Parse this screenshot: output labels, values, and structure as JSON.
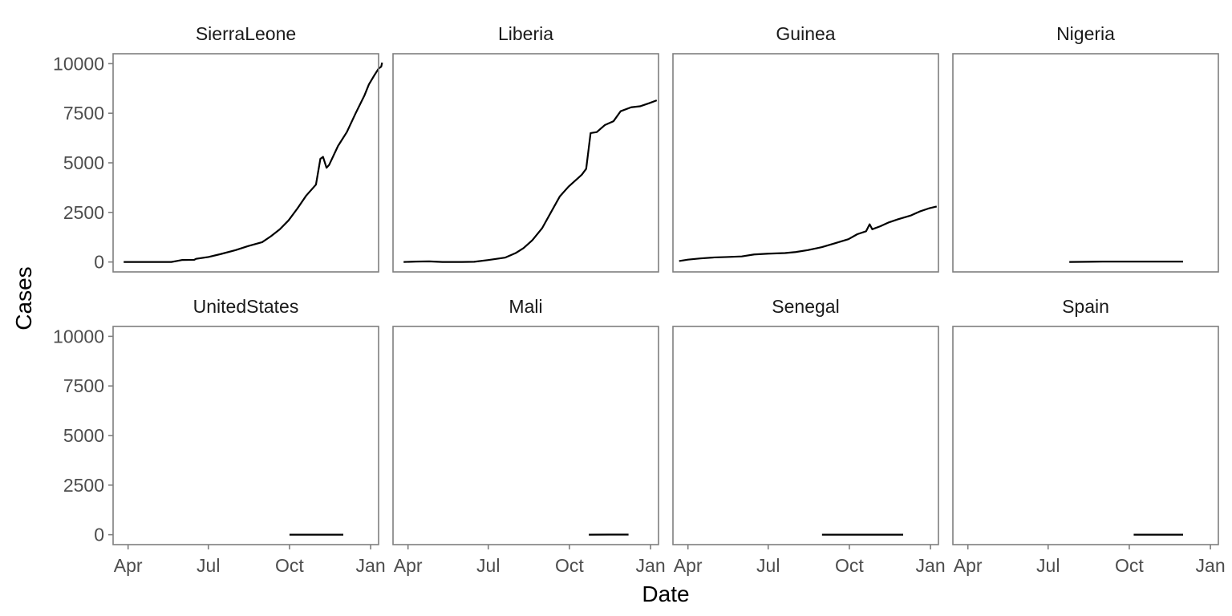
{
  "chart_data": {
    "type": "line",
    "facet": {
      "rows": 2,
      "cols": 4
    },
    "xlabel": "Date",
    "ylabel": "Cases",
    "xlim": [
      "2014-03-15",
      "2015-01-10"
    ],
    "ylim": [
      -500,
      10500
    ],
    "x_ticks": [
      {
        "date": "2014-04-01",
        "label": "Apr"
      },
      {
        "date": "2014-07-01",
        "label": "Jul"
      },
      {
        "date": "2014-10-01",
        "label": "Oct"
      },
      {
        "date": "2015-01-01",
        "label": "Jan"
      }
    ],
    "y_ticks": [
      0,
      2500,
      5000,
      7500,
      10000
    ],
    "grid": false,
    "panels": [
      {
        "name": "SierraLeone",
        "points": [
          [
            "2014-03-27",
            0
          ],
          [
            "2014-04-15",
            0
          ],
          [
            "2014-05-01",
            0
          ],
          [
            "2014-05-20",
            0
          ],
          [
            "2014-05-26",
            50
          ],
          [
            "2014-06-01",
            100
          ],
          [
            "2014-06-15",
            110
          ],
          [
            "2014-06-17",
            160
          ],
          [
            "2014-07-01",
            250
          ],
          [
            "2014-07-15",
            400
          ],
          [
            "2014-08-01",
            600
          ],
          [
            "2014-08-15",
            800
          ],
          [
            "2014-08-31",
            1000
          ],
          [
            "2014-09-10",
            1300
          ],
          [
            "2014-09-20",
            1650
          ],
          [
            "2014-09-30",
            2100
          ],
          [
            "2014-10-10",
            2700
          ],
          [
            "2014-10-20",
            3350
          ],
          [
            "2014-10-31",
            3900
          ],
          [
            "2014-11-05",
            5200
          ],
          [
            "2014-11-08",
            5300
          ],
          [
            "2014-11-12",
            4750
          ],
          [
            "2014-11-15",
            4900
          ],
          [
            "2014-11-25",
            5850
          ],
          [
            "2014-12-05",
            6550
          ],
          [
            "2014-12-15",
            7500
          ],
          [
            "2014-12-25",
            8400
          ],
          [
            "2014-12-30",
            8950
          ],
          [
            "2015-01-05",
            9400
          ],
          [
            "2015-01-10",
            9750
          ],
          [
            "2015-01-13",
            9850
          ],
          [
            "2015-01-14",
            10050
          ]
        ]
      },
      {
        "name": "Liberia",
        "points": [
          [
            "2014-03-27",
            0
          ],
          [
            "2014-04-10",
            20
          ],
          [
            "2014-04-25",
            30
          ],
          [
            "2014-05-10",
            0
          ],
          [
            "2014-06-01",
            0
          ],
          [
            "2014-06-15",
            10
          ],
          [
            "2014-07-01",
            100
          ],
          [
            "2014-07-20",
            220
          ],
          [
            "2014-08-01",
            450
          ],
          [
            "2014-08-10",
            700
          ],
          [
            "2014-08-20",
            1100
          ],
          [
            "2014-08-31",
            1700
          ],
          [
            "2014-09-10",
            2500
          ],
          [
            "2014-09-20",
            3300
          ],
          [
            "2014-09-30",
            3800
          ],
          [
            "2014-10-10",
            4200
          ],
          [
            "2014-10-15",
            4400
          ],
          [
            "2014-10-20",
            4700
          ],
          [
            "2014-10-25",
            6500
          ],
          [
            "2014-11-01",
            6550
          ],
          [
            "2014-11-10",
            6900
          ],
          [
            "2014-11-20",
            7100
          ],
          [
            "2014-11-28",
            7600
          ],
          [
            "2014-12-10",
            7800
          ],
          [
            "2014-12-20",
            7850
          ],
          [
            "2014-12-30",
            8000
          ],
          [
            "2015-01-08",
            8150
          ]
        ]
      },
      {
        "name": "Guinea",
        "points": [
          [
            "2014-03-22",
            50
          ],
          [
            "2014-04-01",
            120
          ],
          [
            "2014-04-15",
            180
          ],
          [
            "2014-05-01",
            230
          ],
          [
            "2014-05-15",
            250
          ],
          [
            "2014-06-01",
            280
          ],
          [
            "2014-06-15",
            380
          ],
          [
            "2014-07-01",
            420
          ],
          [
            "2014-07-20",
            450
          ],
          [
            "2014-08-01",
            500
          ],
          [
            "2014-08-15",
            600
          ],
          [
            "2014-08-31",
            750
          ],
          [
            "2014-09-15",
            950
          ],
          [
            "2014-09-30",
            1150
          ],
          [
            "2014-10-10",
            1400
          ],
          [
            "2014-10-20",
            1550
          ],
          [
            "2014-10-24",
            1900
          ],
          [
            "2014-10-27",
            1650
          ],
          [
            "2014-11-05",
            1800
          ],
          [
            "2014-11-15",
            2000
          ],
          [
            "2014-11-25",
            2150
          ],
          [
            "2014-12-10",
            2350
          ],
          [
            "2014-12-20",
            2550
          ],
          [
            "2014-12-30",
            2700
          ],
          [
            "2015-01-08",
            2800
          ]
        ]
      },
      {
        "name": "Nigeria",
        "points": [
          [
            "2014-07-25",
            0
          ],
          [
            "2014-08-15",
            10
          ],
          [
            "2014-09-01",
            20
          ],
          [
            "2014-12-01",
            20
          ]
        ]
      },
      {
        "name": "UnitedStates",
        "points": [
          [
            "2014-10-01",
            0
          ],
          [
            "2014-12-01",
            0
          ]
        ]
      },
      {
        "name": "Mali",
        "points": [
          [
            "2014-10-23",
            0
          ],
          [
            "2014-11-15",
            5
          ],
          [
            "2014-12-07",
            6
          ]
        ]
      },
      {
        "name": "Senegal",
        "points": [
          [
            "2014-08-31",
            0
          ],
          [
            "2014-12-01",
            0
          ]
        ]
      },
      {
        "name": "Spain",
        "points": [
          [
            "2014-10-06",
            0
          ],
          [
            "2014-12-01",
            0
          ]
        ]
      }
    ]
  }
}
